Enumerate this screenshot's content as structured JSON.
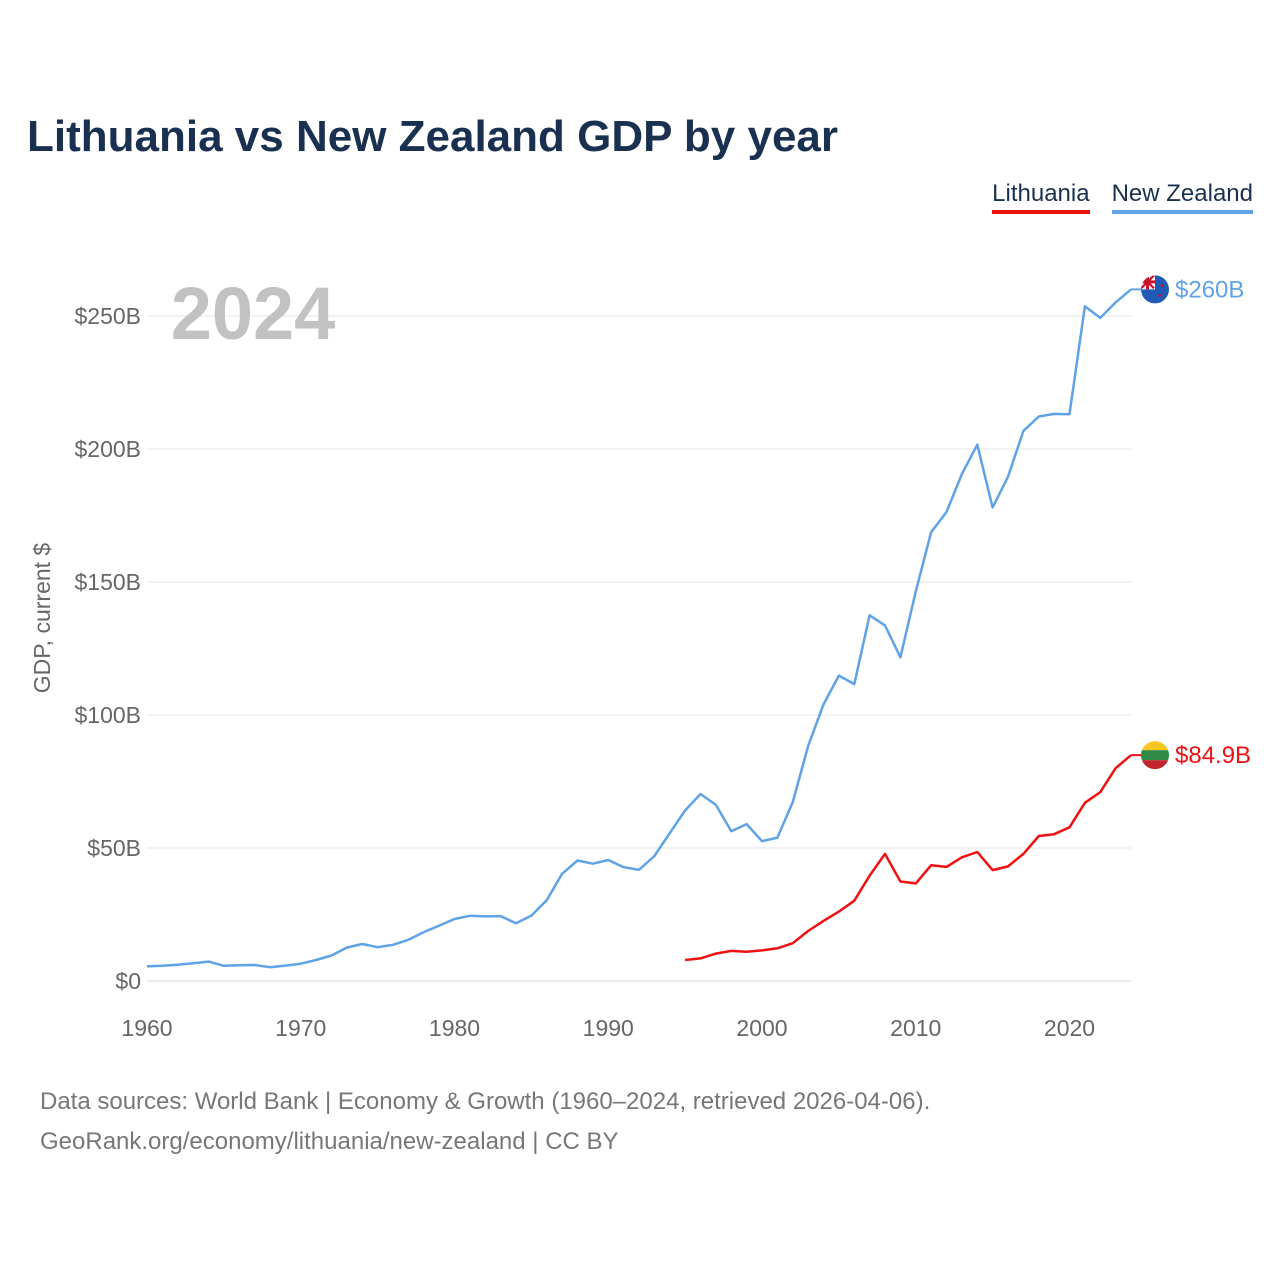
{
  "title": "Lithuania vs New Zealand GDP by year",
  "legend": [
    {
      "label": "Lithuania",
      "color": "#ee1111"
    },
    {
      "label": "New Zealand",
      "color": "#5fa3e6"
    }
  ],
  "footer": {
    "line1": "Data sources: World Bank | Economy & Growth (1960–2024, retrieved 2026-04-06).",
    "line2": "GeoRank.org/economy/lithuania/new-zealand | CC BY"
  },
  "chart_data": {
    "type": "line",
    "title": "Lithuania vs New Zealand GDP by year",
    "year_label": "2024",
    "xlabel": "",
    "ylabel": "GDP, current $",
    "xlim": [
      1960,
      2024
    ],
    "ylim": [
      0,
      260
    ],
    "x_ticks": [
      "1960",
      "1970",
      "1980",
      "1990",
      "2000",
      "2010",
      "2020"
    ],
    "y_ticks": [
      {
        "value": 0,
        "label": "$0"
      },
      {
        "value": 50,
        "label": "$50B"
      },
      {
        "value": 100,
        "label": "$100B"
      },
      {
        "value": 150,
        "label": "$150B"
      },
      {
        "value": 200,
        "label": "$200B"
      },
      {
        "value": 250,
        "label": "$250B"
      }
    ],
    "series": [
      {
        "name": "New Zealand",
        "color": "#5fa3e6",
        "end_label": "$260B",
        "flag": "new-zealand-flag-icon",
        "x": [
          1960,
          1961,
          1962,
          1963,
          1964,
          1965,
          1966,
          1967,
          1968,
          1969,
          1970,
          1971,
          1972,
          1973,
          1974,
          1975,
          1976,
          1977,
          1978,
          1979,
          1980,
          1981,
          1982,
          1983,
          1984,
          1985,
          1986,
          1987,
          1988,
          1989,
          1990,
          1991,
          1992,
          1993,
          1994,
          1995,
          1996,
          1997,
          1998,
          1999,
          2000,
          2001,
          2002,
          2003,
          2004,
          2005,
          2006,
          2007,
          2008,
          2009,
          2010,
          2011,
          2012,
          2013,
          2014,
          2015,
          2016,
          2017,
          2018,
          2019,
          2020,
          2021,
          2022,
          2023,
          2024
        ],
        "values": [
          5.5,
          5.7,
          6.1,
          6.7,
          7.3,
          5.7,
          5.9,
          6.0,
          5.2,
          5.8,
          6.5,
          7.9,
          9.6,
          12.6,
          13.9,
          12.7,
          13.6,
          15.5,
          18.4,
          20.8,
          23.3,
          24.5,
          24.3,
          24.4,
          21.7,
          24.6,
          30.4,
          40.3,
          45.3,
          44.1,
          45.5,
          42.8,
          41.8,
          47.0,
          55.6,
          64.1,
          70.3,
          66.2,
          56.3,
          59.0,
          52.6,
          53.9,
          67.3,
          88.3,
          104.0,
          114.8,
          111.6,
          137.5,
          133.7,
          121.7,
          146.5,
          168.7,
          176.3,
          190.6,
          201.6,
          178.0,
          189.6,
          206.8,
          212.2,
          213.2,
          213.1,
          253.7,
          249.3,
          255.1,
          260.0
        ]
      },
      {
        "name": "Lithuania",
        "color": "#ee1111",
        "end_label": "$84.9B",
        "flag": "lithuania-flag-icon",
        "x": [
          1995,
          1996,
          1997,
          1998,
          1999,
          2000,
          2001,
          2002,
          2003,
          2004,
          2005,
          2006,
          2007,
          2008,
          2009,
          2010,
          2011,
          2012,
          2013,
          2014,
          2015,
          2016,
          2017,
          2018,
          2019,
          2020,
          2021,
          2022,
          2023,
          2024
        ],
        "values": [
          7.9,
          8.5,
          10.3,
          11.3,
          11.0,
          11.5,
          12.3,
          14.2,
          18.8,
          22.6,
          26.1,
          30.2,
          39.6,
          47.8,
          37.4,
          36.7,
          43.5,
          42.9,
          46.5,
          48.5,
          41.7,
          43.1,
          47.8,
          54.5,
          55.2,
          57.8,
          67.0,
          71.0,
          80.0,
          84.9
        ]
      }
    ]
  }
}
